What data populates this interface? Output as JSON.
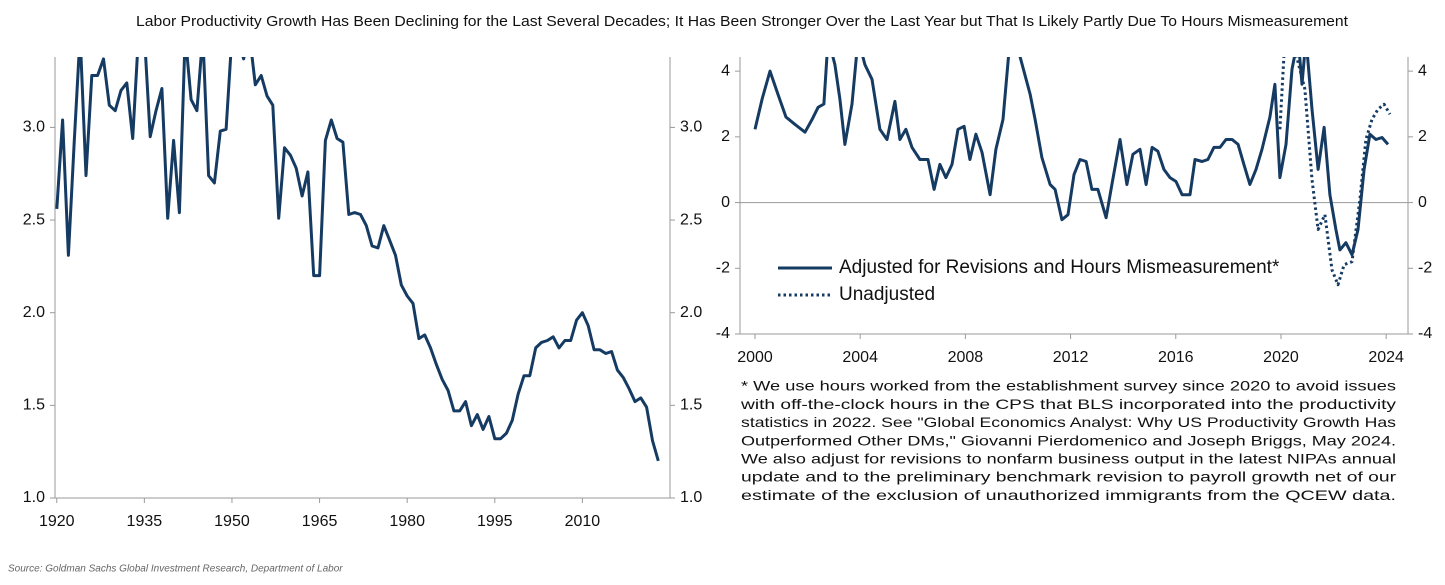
{
  "title": "Labor Productivity Growth Has Been Declining for the Last Several Decades; It Has Been Stronger Over the Last Year but That Is Likely Partly Due To Hours Mismeasurement",
  "footnote": [
    "* We use hours worked from the establishment survey since 2020 to avoid issues",
    "with off-the-clock hours in the CPS that BLS incorporated into the productivity",
    "statistics in 2022. See \"Global Economics Analyst: Why US Productivity Growth Has",
    "Outperformed Other DMs,\" Giovanni Pierdomenico and Joseph Briggs, May 2024.",
    "We also adjust for revisions to nonfarm business output in the latest NIPAs annual",
    "update and to the preliminary benchmark revision to payroll growth net of our",
    "estimate of the exclusion of unauthorized immigrants from the QCEW data."
  ],
  "source": "Source: Goldman Sachs Global Investment Research, Department of Labor",
  "chart_data": [
    {
      "type": "line",
      "x": [
        1920,
        1921,
        1922,
        1923,
        1924,
        1925,
        1926,
        1927,
        1928,
        1929,
        1930,
        1931,
        1932,
        1933,
        1934,
        1935,
        1936,
        1937,
        1938,
        1939,
        1940,
        1941,
        1942,
        1943,
        1944,
        1945,
        1946,
        1947,
        1948,
        1949,
        1950,
        1951,
        1952,
        1953,
        1954,
        1955,
        1956,
        1957,
        1958,
        1959,
        1960,
        1961,
        1962,
        1963,
        1964,
        1965,
        1966,
        1967,
        1968,
        1969,
        1970,
        1971,
        1972,
        1973,
        1974,
        1975,
        1976,
        1977,
        1978,
        1979,
        1980,
        1981,
        1982,
        1983,
        1984,
        1985,
        1986,
        1987,
        1988,
        1989,
        1990,
        1991,
        1992,
        1993,
        1994,
        1995,
        1996,
        1997,
        1998,
        1999,
        2000,
        2001,
        2002,
        2003,
        2004,
        2005,
        2006,
        2007,
        2008,
        2009,
        2010,
        2011,
        2012,
        2013,
        2014,
        2015,
        2016,
        2017,
        2018,
        2019,
        2020,
        2021,
        2022,
        2023
      ],
      "series": [
        {
          "color": "#163b63",
          "style": "solid",
          "values": [
            2.56,
            3.04,
            2.31,
            2.93,
            3.5,
            2.74,
            3.28,
            3.28,
            3.37,
            3.12,
            3.09,
            3.2,
            3.24,
            2.94,
            3.5,
            3.5,
            2.95,
            3.09,
            3.21,
            2.51,
            2.93,
            2.54,
            3.5,
            3.15,
            3.09,
            3.5,
            2.74,
            2.7,
            2.98,
            2.99,
            3.5,
            3.5,
            3.37,
            3.5,
            3.23,
            3.28,
            3.17,
            3.12,
            2.51,
            2.89,
            2.85,
            2.78,
            2.63,
            2.76,
            2.2,
            2.2,
            2.93,
            3.04,
            2.94,
            2.92,
            2.53,
            2.54,
            2.53,
            2.47,
            2.36,
            2.35,
            2.47,
            2.39,
            2.31,
            2.15,
            2.09,
            2.05,
            1.86,
            1.88,
            1.81,
            1.72,
            1.64,
            1.58,
            1.47,
            1.47,
            1.52,
            1.39,
            1.45,
            1.37,
            1.44,
            1.32,
            1.32,
            1.35,
            1.42,
            1.56,
            1.66,
            1.66,
            1.81,
            1.84,
            1.85,
            1.87,
            1.81,
            1.85,
            1.85,
            1.96,
            2.0,
            1.93,
            1.8,
            1.8,
            1.78,
            1.79,
            1.69,
            1.65,
            1.59,
            1.52,
            1.54,
            1.49,
            1.31,
            1.2
          ]
        }
      ],
      "xlim": [
        1919.7,
        2025
      ],
      "xticks": [
        1920,
        1935,
        1950,
        1965,
        1980,
        1995,
        2010
      ],
      "ylim": [
        1,
        3.38
      ],
      "yticks": [
        {
          "value": 1,
          "label": "1.0"
        },
        {
          "value": 1.5,
          "label": "1.5"
        },
        {
          "value": 2,
          "label": "2.0"
        },
        {
          "value": 2.5,
          "label": "2.5"
        },
        {
          "value": 3,
          "label": "3.0"
        }
      ],
      "y_labels_both_sides": true,
      "grid": false
    },
    {
      "type": "line",
      "series": [
        {
          "name": "Adjusted for Revisions and Hours Mismeasurement*",
          "color": "#163b63",
          "style": "solid",
          "x": [
            2000,
            2000.27,
            2000.57,
            2000.87,
            2001.18,
            2001.52,
            2001.9,
            2002.17,
            2002.4,
            2002.62,
            2002.78,
            2003.04,
            2003.23,
            2003.42,
            2003.69,
            2003.92,
            2004.18,
            2004.45,
            2004.75,
            2005.02,
            2005.32,
            2005.51,
            2005.74,
            2005.97,
            2006.27,
            2006.58,
            2006.81,
            2007.03,
            2007.26,
            2007.49,
            2007.72,
            2007.95,
            2008.17,
            2008.4,
            2008.63,
            2008.94,
            2009.16,
            2009.43,
            2009.7,
            2009.89,
            2010.46,
            2010.65,
            2010.91,
            2011.22,
            2011.41,
            2011.67,
            2011.9,
            2012.13,
            2012.36,
            2012.59,
            2012.81,
            2013.04,
            2013.35,
            2013.57,
            2013.88,
            2014.14,
            2014.37,
            2014.64,
            2014.87,
            2015.1,
            2015.32,
            2015.55,
            2015.78,
            2016.01,
            2016.24,
            2016.54,
            2016.73,
            2017,
            2017.22,
            2017.45,
            2017.68,
            2017.91,
            2018.14,
            2018.37,
            2018.59,
            2018.82,
            2019.05,
            2019.28,
            2019.58,
            2019.77,
            2019.96,
            2020.19,
            2020.42,
            2020.65,
            2020.8,
            2020.95,
            2021.18,
            2021.41,
            2021.64,
            2021.86,
            2022.09,
            2022.24,
            2022.47,
            2022.7,
            2022.93,
            2023.16,
            2023.38,
            2023.61,
            2023.84,
            2024.07
          ],
          "values": [
            2.23,
            3.15,
            4.0,
            3.3,
            2.6,
            2.38,
            2.14,
            2.53,
            2.9,
            3.0,
            5.0,
            4.2,
            3.15,
            1.77,
            3.0,
            5.0,
            4.2,
            3.75,
            2.23,
            1.92,
            3.08,
            1.92,
            2.23,
            1.68,
            1.31,
            1.31,
            0.4,
            1.16,
            0.76,
            1.16,
            2.23,
            2.32,
            1.31,
            2.08,
            1.53,
            0.24,
            1.62,
            2.53,
            5.0,
            5.0,
            3.3,
            2.53,
            1.37,
            0.55,
            0.4,
            -0.52,
            -0.37,
            0.85,
            1.31,
            1.25,
            0.4,
            0.4,
            -0.46,
            0.55,
            1.92,
            0.55,
            1.47,
            1.62,
            0.55,
            1.68,
            1.56,
            1.01,
            0.76,
            0.64,
            0.24,
            0.24,
            1.31,
            1.25,
            1.31,
            1.68,
            1.68,
            1.92,
            1.92,
            1.77,
            1.16,
            0.55,
            1.01,
            1.62,
            2.6,
            3.6,
            0.76,
            1.77,
            4.06,
            5.0,
            3.6,
            5.0,
            2.84,
            1.01,
            2.29,
            0.24,
            -0.82,
            -1.44,
            -1.22,
            -1.59,
            -0.82,
            1.01,
            2.08,
            1.92,
            1.98,
            1.77
          ]
        },
        {
          "name": "Unadjusted",
          "color": "#163b63",
          "style": "dotted",
          "x": [
            2019.96,
            2020.15,
            2020.42,
            2020.91,
            2021.18,
            2021.41,
            2021.67,
            2021.94,
            2022.17,
            2022.4,
            2022.7,
            2023,
            2023.23,
            2023.46,
            2023.69,
            2023.92,
            2024.14
          ],
          "values": [
            2.23,
            5.0,
            5.0,
            3.45,
            0.7,
            -0.82,
            -0.37,
            -2.05,
            -2.5,
            -1.89,
            -1.8,
            0.09,
            1.92,
            2.53,
            2.84,
            2.99,
            2.69
          ]
        }
      ],
      "xlim": [
        1999.43,
        2024.83
      ],
      "xticks": [
        2000,
        2004,
        2008,
        2012,
        2016,
        2020,
        2024
      ],
      "ylim": [
        -4,
        4.43
      ],
      "yticks": [
        -4,
        -2,
        0,
        2,
        4
      ],
      "y_labels_both_sides": true,
      "zero_line": true,
      "legend": "lower left",
      "grid": false
    }
  ]
}
